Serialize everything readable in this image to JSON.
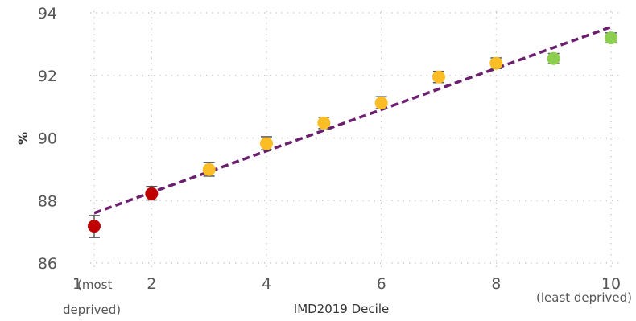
{
  "chart_data": {
    "type": "scatter",
    "title": "",
    "xlabel": "IMD2019 Decile",
    "ylabel": "%",
    "xlim": [
      1,
      10
    ],
    "ylim": [
      86,
      94
    ],
    "yticks": [
      86,
      88,
      90,
      92,
      94
    ],
    "xticks": [
      {
        "value": 1,
        "label": "1"
      },
      {
        "value": 2,
        "label": "2"
      },
      {
        "value": 4,
        "label": "4"
      },
      {
        "value": 6,
        "label": "6"
      },
      {
        "value": 8,
        "label": "8"
      },
      {
        "value": 10,
        "label": "10"
      }
    ],
    "annotations": {
      "left_line1": "(most",
      "left_line2": "deprived)",
      "right": "(least deprived)"
    },
    "grid": true,
    "colors": {
      "red": "#c00000",
      "amber": "#fbbd26",
      "green": "#8ccf4e",
      "trend": "#6b1f6e",
      "errorbar": "#555555",
      "grid": "#bbbbbb"
    },
    "points": [
      {
        "x": 1,
        "y": 87.18,
        "err_low": 86.82,
        "err_high": 87.52,
        "color": "red"
      },
      {
        "x": 2,
        "y": 88.22,
        "err_low": 88.02,
        "err_high": 88.45,
        "color": "red"
      },
      {
        "x": 3,
        "y": 88.99,
        "err_low": 88.78,
        "err_high": 89.22,
        "color": "amber"
      },
      {
        "x": 4,
        "y": 89.82,
        "err_low": 89.62,
        "err_high": 90.04,
        "color": "amber"
      },
      {
        "x": 5,
        "y": 90.48,
        "err_low": 90.3,
        "err_high": 90.66,
        "color": "amber"
      },
      {
        "x": 6,
        "y": 91.12,
        "err_low": 90.94,
        "err_high": 91.32,
        "color": "amber"
      },
      {
        "x": 7,
        "y": 91.95,
        "err_low": 91.77,
        "err_high": 92.13,
        "color": "amber"
      },
      {
        "x": 8,
        "y": 92.39,
        "err_low": 92.22,
        "err_high": 92.56,
        "color": "amber"
      },
      {
        "x": 9,
        "y": 92.54,
        "err_low": 92.38,
        "err_high": 92.7,
        "color": "green"
      },
      {
        "x": 10,
        "y": 93.2,
        "err_low": 93.04,
        "err_high": 93.36,
        "color": "green"
      }
    ],
    "trendline": {
      "style": "dashed",
      "x": [
        1,
        10
      ],
      "y": [
        87.6,
        93.55
      ]
    }
  }
}
